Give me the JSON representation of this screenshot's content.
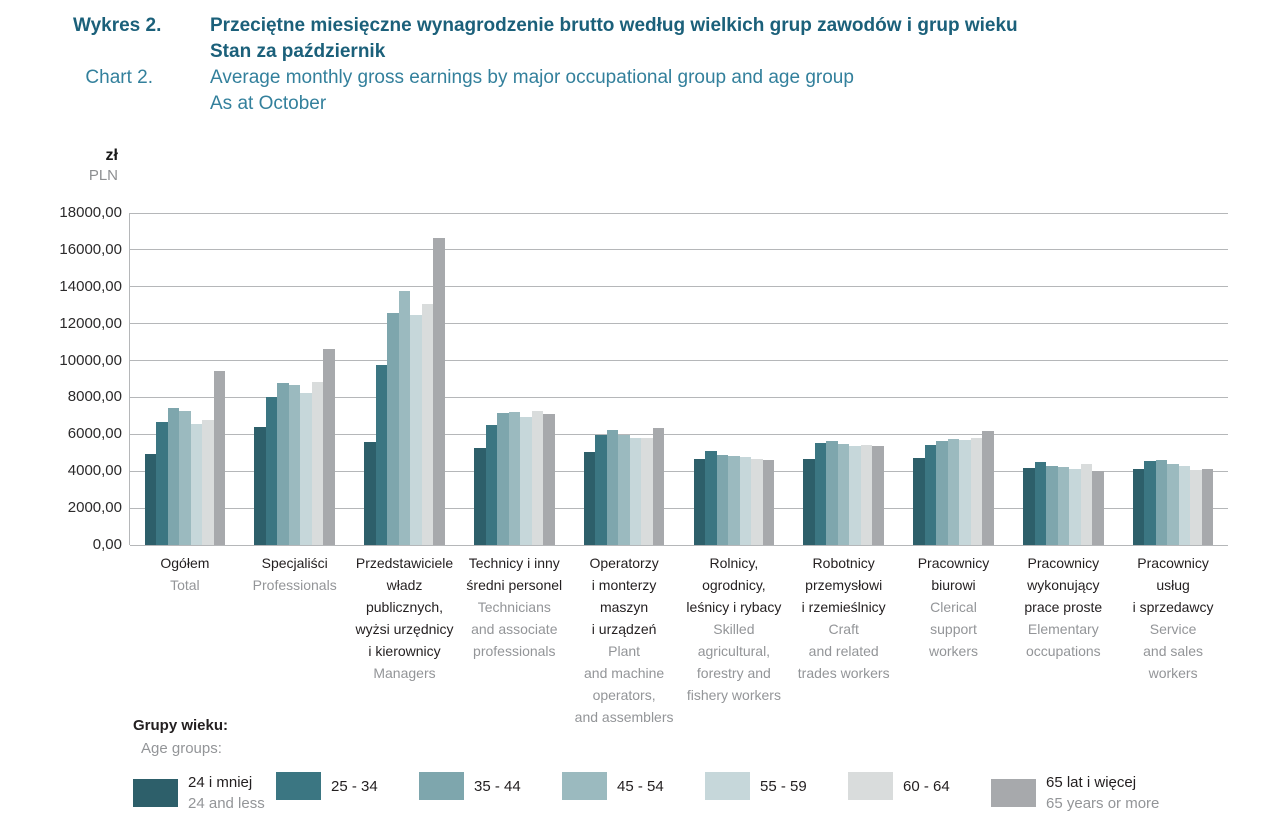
{
  "header": {
    "label_pl": "Wykres 2.",
    "label_en": "Chart 2.",
    "title_pl": "Przeciętne miesięczne wynagrodzenie brutto według wielkich grup zawodów i grup wieku\nStan za październik",
    "title_en": "Average monthly gross earnings by major occupational group and age group\nAs at October",
    "color_pl": "#1b607a",
    "color_en": "#33809c"
  },
  "axis_unit": {
    "pl": "zł",
    "en": "PLN"
  },
  "legend_heading": {
    "pl": "Grupy wieku:",
    "en": "Age groups:"
  },
  "chart_data": {
    "type": "bar",
    "title": "Przeciętne miesięczne wynagrodzenie brutto według wielkich grup zawodów i grup wieku. Stan za październik",
    "xlabel": "",
    "ylabel": "zł / PLN",
    "ylim": [
      0,
      18000
    ],
    "ytick_step": 2000,
    "ytick_labels": [
      "0,00",
      "2000,00",
      "4000,00",
      "6000,00",
      "8000,00",
      "10000,00",
      "12000,00",
      "14000,00",
      "16000,00",
      "18000,00"
    ],
    "grid": true,
    "legend_position": "bottom",
    "categories": [
      {
        "pl": "Ogółem",
        "en": "Total"
      },
      {
        "pl": "Specjaliści",
        "en": "Professionals"
      },
      {
        "pl": "Przedstawiciele\nwładz\npublicznych,\nwyżsi urzędnicy\ni kierownicy",
        "en": "Managers"
      },
      {
        "pl": "Technicy i inny\nśredni personel",
        "en": "Technicians\nand associate\nprofessionals"
      },
      {
        "pl": "Operatorzy\ni monterzy\nmaszyn\ni urządzeń",
        "en": "Plant\nand machine\noperators,\nand assemblers"
      },
      {
        "pl": "Rolnicy,\nogrodnicy,\nleśnicy i rybacy",
        "en": "Skilled\nagricultural,\nforestry and\nfishery workers"
      },
      {
        "pl": "Robotnicy\nprzemysłowi\ni rzemieślnicy",
        "en": "Craft\nand related\ntrades workers"
      },
      {
        "pl": "Pracownicy\nbiurowi",
        "en": "Clerical\nsupport\nworkers"
      },
      {
        "pl": "Pracownicy\nwykonujący\nprace proste",
        "en": "Elementary\noccupations"
      },
      {
        "pl": "Pracownicy\nusług\ni sprzedawcy",
        "en": "Service\nand sales\nworkers"
      }
    ],
    "series": [
      {
        "name_pl": "24 i mniej",
        "name_en": "24 and less",
        "color": "#2d5f6a",
        "values": [
          4920,
          6380,
          5600,
          5240,
          5020,
          4660,
          4680,
          4690,
          4150,
          4130
        ]
      },
      {
        "name_pl": "25 - 34",
        "name_en": "",
        "color": "#3b7682",
        "values": [
          6650,
          8050,
          9760,
          6490,
          5960,
          5110,
          5530,
          5420,
          4500,
          4530
        ]
      },
      {
        "name_pl": "35 - 44",
        "name_en": "",
        "color": "#7ea6ad",
        "values": [
          7410,
          8760,
          12590,
          7140,
          6220,
          4860,
          5650,
          5650,
          4300,
          4590
        ]
      },
      {
        "name_pl": "45 - 54",
        "name_en": "",
        "color": "#9bbabf",
        "values": [
          7260,
          8650,
          13750,
          7210,
          5950,
          4820,
          5460,
          5740,
          4220,
          4390
        ]
      },
      {
        "name_pl": "55 - 59",
        "name_en": "",
        "color": "#c6d7da",
        "values": [
          6580,
          8220,
          12480,
          6920,
          5780,
          4790,
          5350,
          5690,
          4130,
          4260
        ]
      },
      {
        "name_pl": "60 - 64",
        "name_en": "",
        "color": "#d9dcdc",
        "values": [
          6790,
          8850,
          13050,
          7250,
          5820,
          4680,
          5420,
          5820,
          4390,
          4070
        ]
      },
      {
        "name_pl": "65 lat i więcej",
        "name_en": "65 years or more",
        "color": "#a7a9ac",
        "values": [
          9450,
          10600,
          16640,
          7080,
          6320,
          4590,
          5370,
          6200,
          3990,
          4100
        ]
      }
    ]
  },
  "layout_colors": {
    "gridline": "#b5b7b9"
  }
}
